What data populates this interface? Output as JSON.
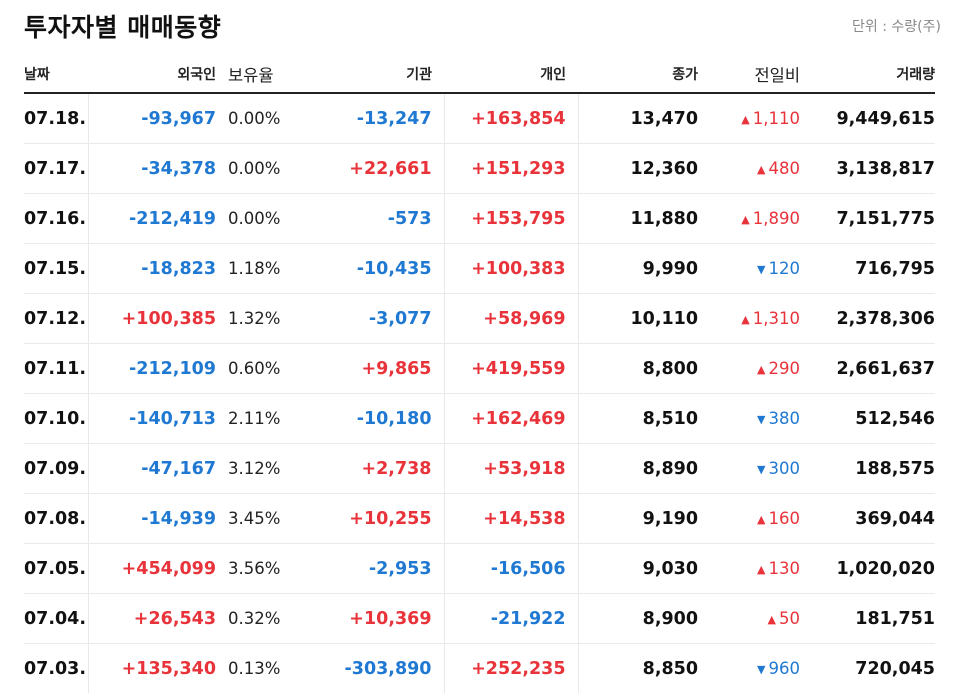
{
  "title": "투자자별 매매동향",
  "unit": "단위 : 수량(주)",
  "headers": {
    "date": "날짜",
    "foreign": "외국인",
    "ratio": "보유율",
    "institution": "기관",
    "individual": "개인",
    "close": "종가",
    "change": "전일비",
    "volume": "거래량"
  },
  "colors": {
    "up": "#e8333b",
    "down": "#1f78d1"
  },
  "rows": [
    {
      "date": "07.18.",
      "foreign": "-93,967",
      "ratio": "0.00%",
      "institution": "-13,247",
      "individual": "+163,854",
      "close": "13,470",
      "change_dir": "up",
      "change": "1,110",
      "volume": "9,449,615"
    },
    {
      "date": "07.17.",
      "foreign": "-34,378",
      "ratio": "0.00%",
      "institution": "+22,661",
      "individual": "+151,293",
      "close": "12,360",
      "change_dir": "up",
      "change": "480",
      "volume": "3,138,817"
    },
    {
      "date": "07.16.",
      "foreign": "-212,419",
      "ratio": "0.00%",
      "institution": "-573",
      "individual": "+153,795",
      "close": "11,880",
      "change_dir": "up",
      "change": "1,890",
      "volume": "7,151,775"
    },
    {
      "date": "07.15.",
      "foreign": "-18,823",
      "ratio": "1.18%",
      "institution": "-10,435",
      "individual": "+100,383",
      "close": "9,990",
      "change_dir": "down",
      "change": "120",
      "volume": "716,795"
    },
    {
      "date": "07.12.",
      "foreign": "+100,385",
      "ratio": "1.32%",
      "institution": "-3,077",
      "individual": "+58,969",
      "close": "10,110",
      "change_dir": "up",
      "change": "1,310",
      "volume": "2,378,306"
    },
    {
      "date": "07.11.",
      "foreign": "-212,109",
      "ratio": "0.60%",
      "institution": "+9,865",
      "individual": "+419,559",
      "close": "8,800",
      "change_dir": "up",
      "change": "290",
      "volume": "2,661,637"
    },
    {
      "date": "07.10.",
      "foreign": "-140,713",
      "ratio": "2.11%",
      "institution": "-10,180",
      "individual": "+162,469",
      "close": "8,510",
      "change_dir": "down",
      "change": "380",
      "volume": "512,546"
    },
    {
      "date": "07.09.",
      "foreign": "-47,167",
      "ratio": "3.12%",
      "institution": "+2,738",
      "individual": "+53,918",
      "close": "8,890",
      "change_dir": "down",
      "change": "300",
      "volume": "188,575"
    },
    {
      "date": "07.08.",
      "foreign": "-14,939",
      "ratio": "3.45%",
      "institution": "+10,255",
      "individual": "+14,538",
      "close": "9,190",
      "change_dir": "up",
      "change": "160",
      "volume": "369,044"
    },
    {
      "date": "07.05.",
      "foreign": "+454,099",
      "ratio": "3.56%",
      "institution": "-2,953",
      "individual": "-16,506",
      "close": "9,030",
      "change_dir": "up",
      "change": "130",
      "volume": "1,020,020"
    },
    {
      "date": "07.04.",
      "foreign": "+26,543",
      "ratio": "0.32%",
      "institution": "+10,369",
      "individual": "-21,922",
      "close": "8,900",
      "change_dir": "up",
      "change": "50",
      "volume": "181,751"
    },
    {
      "date": "07.03.",
      "foreign": "+135,340",
      "ratio": "0.13%",
      "institution": "-303,890",
      "individual": "+252,235",
      "close": "8,850",
      "change_dir": "down",
      "change": "960",
      "volume": "720,045"
    }
  ]
}
